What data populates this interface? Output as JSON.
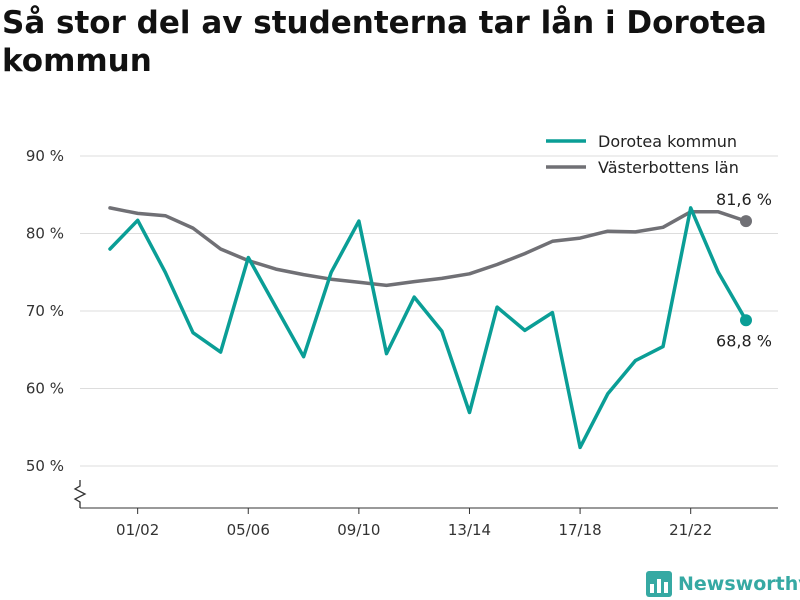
{
  "title": "Så stor del av studenterna tar lån i Dorotea kommun",
  "brand": {
    "name": "Newsworthy",
    "icon": "bar-chart-logo-icon"
  },
  "colors": {
    "primary": "#0a9e96",
    "secondary": "#707075",
    "grid": "#dddddd",
    "brand": "#36a9a3"
  },
  "chart_data": {
    "type": "line",
    "x": [
      "00/01",
      "01/02",
      "02/03",
      "03/04",
      "04/05",
      "05/06",
      "06/07",
      "07/08",
      "08/09",
      "09/10",
      "10/11",
      "11/12",
      "12/13",
      "13/14",
      "14/15",
      "15/16",
      "16/17",
      "17/18",
      "18/19",
      "19/20",
      "20/21",
      "21/22",
      "22/23",
      "23/24"
    ],
    "x_tick_labels": [
      "01/02",
      "05/06",
      "09/10",
      "13/14",
      "17/18",
      "21/22"
    ],
    "series": [
      {
        "name": "Dorotea kommun",
        "color": "#0a9e96",
        "values": [
          78.0,
          81.7,
          75.0,
          67.2,
          64.7,
          76.9,
          70.5,
          64.1,
          75.0,
          81.6,
          64.5,
          71.8,
          67.4,
          56.9,
          70.5,
          67.5,
          69.8,
          52.4,
          59.3,
          63.6,
          65.4,
          83.3,
          75.0,
          68.8
        ],
        "end_label": "68,8 %"
      },
      {
        "name": "Västerbottens län",
        "color": "#707075",
        "values": [
          83.3,
          82.6,
          82.3,
          80.7,
          78.0,
          76.5,
          75.4,
          74.7,
          74.1,
          73.7,
          73.3,
          73.8,
          74.2,
          74.8,
          76.0,
          77.4,
          79.0,
          79.4,
          80.3,
          80.2,
          80.8,
          82.8,
          82.8,
          81.6
        ],
        "end_label": "81,6 %"
      }
    ],
    "y_ticks": [
      50,
      60,
      70,
      80,
      90
    ],
    "y_tick_labels": [
      "50 %",
      "60 %",
      "70 %",
      "80 %",
      "90 %"
    ],
    "ylim": [
      50,
      90
    ],
    "y_axis_break": true,
    "grid": true,
    "legend_position": "top-right"
  }
}
